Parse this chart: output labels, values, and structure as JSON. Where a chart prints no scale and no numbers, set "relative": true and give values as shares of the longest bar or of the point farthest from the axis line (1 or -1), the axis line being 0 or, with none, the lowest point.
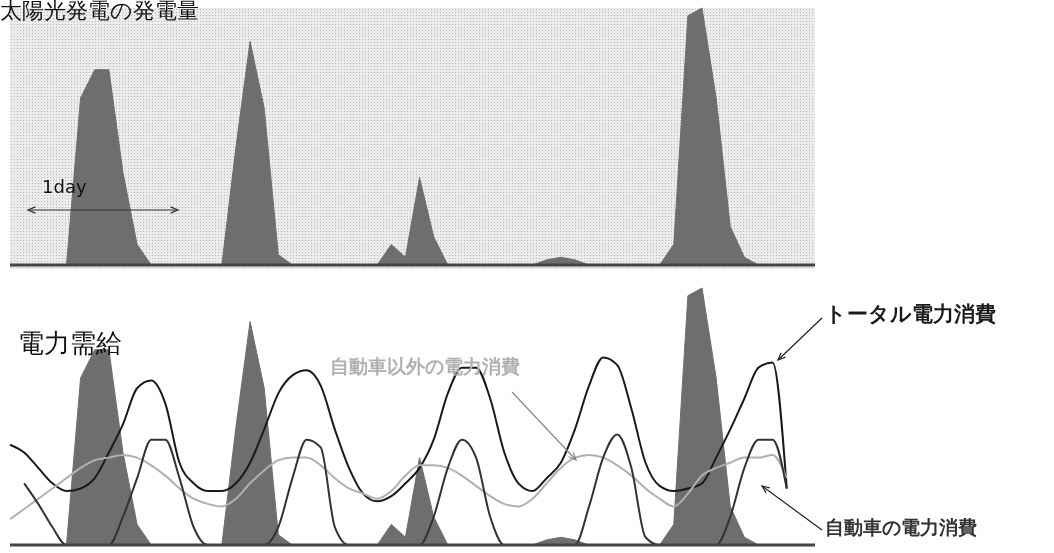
{
  "chart_data": [
    {
      "type": "area",
      "title": "太陽光発電の発電量",
      "relative": true,
      "legend": false,
      "grid": false,
      "annotations": [
        "1day"
      ],
      "categories": [
        null,
        null,
        null,
        null,
        null,
        null,
        null,
        null,
        null,
        null,
        null,
        null,
        null,
        null,
        null,
        null,
        null,
        null,
        null,
        null,
        null,
        null,
        null,
        null,
        null,
        null,
        null,
        null,
        null,
        null,
        null,
        null,
        null,
        null,
        null,
        null,
        null,
        null,
        null,
        null,
        null,
        null,
        null,
        null,
        null,
        null,
        null,
        null,
        null,
        null,
        null,
        null,
        null,
        null,
        null,
        null,
        null,
        null
      ],
      "series": [
        {
          "color": "#6e6e6e",
          "values": [
            0,
            0,
            0,
            0,
            0,
            0.65,
            0.76,
            0.76,
            0.36,
            0.08,
            0,
            0,
            0,
            0,
            0,
            0,
            0.46,
            0.87,
            0.61,
            0.04,
            0,
            0,
            0,
            0,
            0,
            0,
            0,
            0.08,
            0.03,
            0.34,
            0.11,
            0,
            0,
            0,
            0,
            0,
            0,
            0,
            0.02,
            0.03,
            0.02,
            0,
            0,
            0,
            0,
            0,
            0,
            0.08,
            0.97,
            1,
            0.65,
            0.15,
            0.03,
            0,
            0,
            0,
            0,
            0
          ]
        }
      ]
    },
    {
      "type": "line",
      "title": "電力需給",
      "relative": true,
      "legend": false,
      "grid": false,
      "categories": [
        null,
        null,
        null,
        null,
        null,
        null,
        null,
        null,
        null,
        null,
        null,
        null,
        null,
        null,
        null,
        null,
        null,
        null,
        null,
        null,
        null,
        null,
        null,
        null,
        null,
        null,
        null,
        null,
        null,
        null,
        null,
        null,
        null,
        null,
        null,
        null,
        null,
        null,
        null,
        null,
        null,
        null,
        null,
        null,
        null,
        null,
        null,
        null,
        null,
        null,
        null,
        null,
        null,
        null,
        null,
        null,
        null,
        null
      ],
      "series": [
        {
          "type": "area",
          "color": "#6e6e6e",
          "values": [
            0,
            0,
            0,
            0,
            0,
            0.65,
            0.76,
            0.76,
            0.36,
            0.08,
            0,
            0,
            0,
            0,
            0,
            0,
            0.46,
            0.87,
            0.61,
            0.04,
            0,
            0,
            0,
            0,
            0,
            0,
            0,
            0.08,
            0.03,
            0.34,
            0.11,
            0,
            0,
            0,
            0,
            0,
            0,
            0,
            0.02,
            0.03,
            0.02,
            0,
            0,
            0,
            0,
            0,
            0,
            0.08,
            0.97,
            1,
            0.65,
            0.15,
            0.03,
            0,
            0,
            0,
            0,
            0
          ]
        },
        {
          "name": "トータル電力消費",
          "color": "#1a1a1a",
          "values": [
            0.39,
            0.36,
            0.3,
            0.24,
            0.21,
            0.22,
            0.26,
            0.36,
            0.47,
            0.61,
            0.64,
            0.55,
            0.32,
            0.24,
            0.21,
            0.21,
            0.24,
            0.32,
            0.45,
            0.59,
            0.66,
            0.68,
            0.62,
            0.45,
            0.3,
            0.2,
            0.17,
            0.19,
            0.24,
            0.3,
            0.41,
            0.59,
            0.69,
            0.69,
            0.57,
            0.36,
            0.24,
            0.21,
            0.26,
            0.32,
            0.45,
            0.62,
            0.73,
            0.7,
            0.53,
            0.32,
            0.23,
            0.21,
            0.22,
            0.24,
            0.34,
            0.45,
            0.57,
            0.69,
            0.71,
            0.22,
            null,
            null
          ]
        },
        {
          "name": "自動車以外の電力消費",
          "color": "#b0b0b0",
          "values": [
            0.1,
            0.14,
            0.18,
            0.22,
            0.26,
            0.3,
            0.33,
            0.34,
            0.35,
            0.34,
            0.31,
            0.27,
            0.22,
            0.18,
            0.16,
            0.15,
            0.18,
            0.24,
            0.29,
            0.33,
            0.34,
            0.34,
            0.31,
            0.26,
            0.22,
            0.2,
            0.18,
            0.21,
            0.27,
            0.31,
            0.31,
            0.3,
            0.27,
            0.23,
            0.19,
            0.16,
            0.15,
            0.18,
            0.24,
            0.3,
            0.34,
            0.35,
            0.34,
            0.31,
            0.27,
            0.22,
            0.18,
            0.15,
            0.2,
            0.27,
            0.3,
            0.32,
            0.34,
            0.34,
            0.35,
            0.26,
            null,
            null
          ]
        },
        {
          "name": "自動車の電力消費",
          "color": "#333333",
          "values": [
            null,
            0.24,
            0.16,
            0.07,
            0,
            0,
            0,
            0,
            0.11,
            0.26,
            0.41,
            0.41,
            0.26,
            0.07,
            0,
            0,
            0,
            0,
            0,
            0.07,
            0.26,
            0.41,
            0.38,
            0.07,
            0,
            0,
            0,
            0,
            0,
            0,
            0.11,
            0.3,
            0.41,
            0.34,
            0.11,
            0,
            0,
            0,
            0,
            0,
            0,
            0.15,
            0.34,
            0.43,
            0.3,
            0.03,
            0,
            0,
            0,
            0,
            0,
            0.11,
            0.3,
            0.41,
            0.41,
            0.22,
            null,
            null
          ]
        }
      ]
    }
  ]
}
